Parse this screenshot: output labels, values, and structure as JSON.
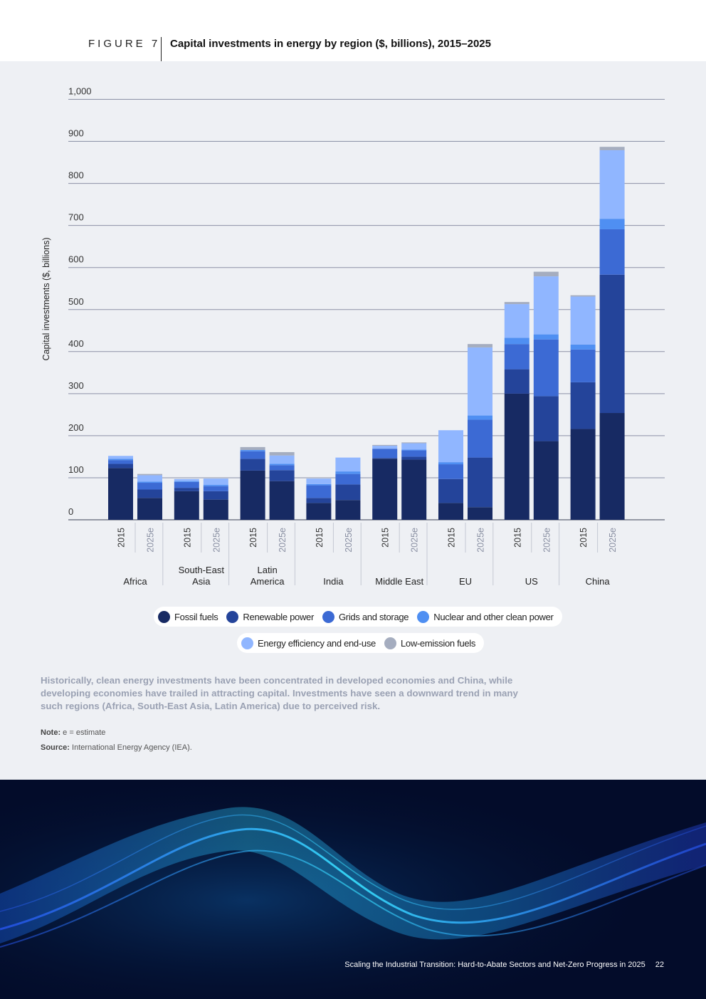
{
  "figure": {
    "label": "FIGURE 7",
    "title": "Capital investments in energy by region ($, billions), 2015–2025"
  },
  "chart_data": {
    "type": "bar",
    "stacked": true,
    "ylabel": "Capital investments ($, billions)",
    "ylim": [
      0,
      1000
    ],
    "yticks": [
      "0",
      "100",
      "200",
      "300",
      "400",
      "500",
      "600",
      "700",
      "800",
      "900",
      "1,000"
    ],
    "grid": true,
    "groups": [
      {
        "region": "Africa",
        "bars": [
          "2015",
          "2025e"
        ]
      },
      {
        "region": "South-East Asia",
        "bars": [
          "2015",
          "2025e"
        ]
      },
      {
        "region": "Latin America",
        "bars": [
          "2015",
          "2025e"
        ]
      },
      {
        "region": "India",
        "bars": [
          "2015",
          "2025e"
        ]
      },
      {
        "region": "Middle East",
        "bars": [
          "2015",
          "2025e"
        ]
      },
      {
        "region": "EU",
        "bars": [
          "2015",
          "2025e"
        ]
      },
      {
        "region": "US",
        "bars": [
          "2015",
          "2025e"
        ]
      },
      {
        "region": "China",
        "bars": [
          "2015",
          "2025e"
        ]
      }
    ],
    "series": [
      {
        "name": "Fossil fuels",
        "color": "#172a63",
        "values": [
          123,
          52,
          68,
          48,
          117,
          92,
          40,
          47,
          145,
          143,
          40,
          30,
          300,
          187,
          216,
          254
        ]
      },
      {
        "name": "Renewable power",
        "color": "#24449a",
        "values": [
          10,
          20,
          8,
          20,
          28,
          26,
          12,
          37,
          2,
          7,
          57,
          118,
          58,
          107,
          111,
          329
        ]
      },
      {
        "name": "Grids and storage",
        "color": "#3c6ad4",
        "values": [
          9,
          16,
          14,
          12,
          18,
          12,
          30,
          25,
          22,
          15,
          35,
          90,
          60,
          135,
          78,
          108
        ]
      },
      {
        "name": "Nuclear and other clean power",
        "color": "#4f8ff2",
        "values": [
          3,
          3,
          2,
          3,
          3,
          3,
          3,
          6,
          0,
          2,
          5,
          10,
          15,
          12,
          12,
          25
        ]
      },
      {
        "name": "Energy efficiency and end-use",
        "color": "#90b6ff",
        "values": [
          7,
          15,
          5,
          15,
          0,
          20,
          13,
          33,
          7,
          15,
          76,
          162,
          80,
          138,
          114,
          163
        ]
      },
      {
        "name": "Low-emission fuels",
        "color": "#a5adbf",
        "values": [
          0,
          3,
          0,
          0,
          7,
          8,
          0,
          0,
          2,
          2,
          0,
          8,
          5,
          11,
          3,
          8
        ]
      }
    ]
  },
  "caption": "Historically, clean energy investments have been concentrated in developed economies and China, while developing economies have trailed in attracting capital. Investments have seen a downward trend in many such regions (Africa, South-East Asia, Latin America) due to perceived risk.",
  "note": {
    "label": "Note:",
    "text": "e = estimate"
  },
  "source": {
    "label": "Source:",
    "text": "International Energy Agency (IEA)."
  },
  "footer": {
    "text": "Scaling the Industrial Transition: Hard-to-Abate Sectors and Net-Zero Progress in 2025",
    "page": "22"
  }
}
